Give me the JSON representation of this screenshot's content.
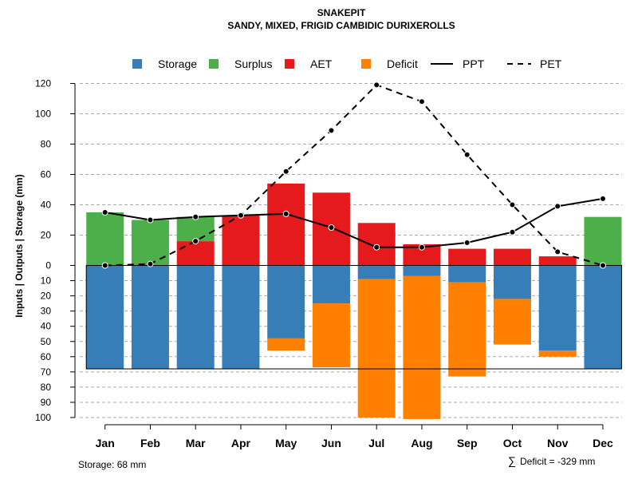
{
  "chart_data": {
    "type": "bar",
    "title": "SNAKEPIT",
    "subtitle": "SANDY, MIXED, FRIGID CAMBIDIC DURIXEROLLS",
    "ylabel": "Inputs | Outputs | Storage    (mm)",
    "categories": [
      "Jan",
      "Feb",
      "Mar",
      "Apr",
      "May",
      "Jun",
      "Jul",
      "Aug",
      "Sep",
      "Oct",
      "Nov",
      "Dec"
    ],
    "upper_ticks": [
      "0",
      "20",
      "40",
      "60",
      "80",
      "100",
      "120"
    ],
    "upper_tick_values": [
      0,
      20,
      40,
      60,
      80,
      100,
      120
    ],
    "lower_ticks": [
      "10",
      "20",
      "30",
      "40",
      "50",
      "60",
      "70",
      "80",
      "90",
      "100"
    ],
    "lower_tick_values": [
      10,
      20,
      30,
      40,
      50,
      60,
      70,
      80,
      90,
      100
    ],
    "upper_range": [
      0,
      120
    ],
    "lower_range": [
      0,
      100
    ],
    "storage_capacity": 68,
    "legend": [
      "Storage",
      "Surplus",
      "AET",
      "Deficit",
      "PPT",
      "PET"
    ],
    "colors": {
      "storage": "#377eb8",
      "surplus": "#4daf4a",
      "aet": "#e41a1c",
      "deficit": "#ff7f00",
      "grid": "#aaaaaa",
      "line": "#000000"
    },
    "series": [
      {
        "name": "Surplus",
        "values": [
          35,
          30,
          16,
          0,
          0,
          0,
          0,
          0,
          0,
          0,
          0,
          32
        ]
      },
      {
        "name": "AET",
        "values": [
          0,
          0,
          16,
          33,
          54,
          48,
          28,
          14,
          11,
          11,
          6,
          0
        ]
      },
      {
        "name": "Storage",
        "values": [
          68,
          68,
          68,
          68,
          48,
          25,
          9,
          7,
          11,
          22,
          56,
          68
        ]
      },
      {
        "name": "Deficit",
        "values": [
          0,
          0,
          0,
          0,
          8,
          42,
          91,
          94,
          62,
          30,
          4,
          0
        ]
      },
      {
        "name": "PPT",
        "values": [
          35,
          30,
          32,
          33,
          34,
          25,
          12,
          12,
          15,
          22,
          39,
          44
        ]
      },
      {
        "name": "PET",
        "values": [
          0,
          1,
          16,
          33,
          62,
          89,
          119,
          108,
          73,
          40,
          9,
          0
        ]
      }
    ],
    "footer_left": "Storage: 68 mm",
    "footer_right_symbol": "∑",
    "footer_right": "Deficit = -329 mm"
  }
}
